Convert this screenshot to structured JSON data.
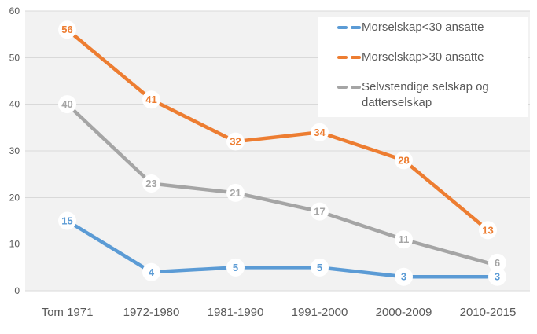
{
  "chart_data": {
    "type": "line",
    "categories": [
      "Tom 1971",
      "1972-1980",
      "1981-1990",
      "1991-2000",
      "2000-2009",
      "2010-2015"
    ],
    "series": [
      {
        "name": "Morselskap<30 ansatte",
        "values": [
          15,
          4,
          5,
          5,
          3,
          3
        ],
        "color": "#5B9BD5",
        "last_label_dx": 12
      },
      {
        "name": "Morselskap>30 ansatte",
        "values": [
          56,
          41,
          32,
          34,
          28,
          13
        ],
        "color": "#ED7D31",
        "last_label_dx": 0
      },
      {
        "name": "Selvstendige selskap og datterselskap",
        "values": [
          40,
          23,
          21,
          17,
          11,
          6
        ],
        "color": "#A5A5A5",
        "last_label_dx": 12
      }
    ],
    "title": "",
    "xlabel": "",
    "ylabel": "",
    "ylim": [
      0,
      60
    ],
    "yticks": [
      0,
      10,
      20,
      30,
      40,
      50,
      60
    ],
    "grid": true,
    "data_labels": true,
    "legend_position": "top-right"
  },
  "styles": {
    "plot_bg": "#F2F2F2",
    "gridline": "#D9D9D9",
    "axis_text": "#595959",
    "label_badge_bg": "#FFFFFF"
  }
}
